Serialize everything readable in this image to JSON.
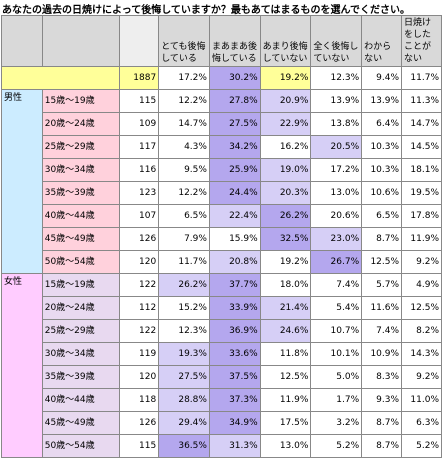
{
  "title": "あなたの過去の日焼けによって後悔していますか？最もあてはまるものを選んでください。",
  "chart_data": {
    "type": "table",
    "columns": [
      "",
      "",
      "",
      "とても後悔している",
      "まあまあ後悔している",
      "あまり後悔していない",
      "全く後悔していない",
      "わからない",
      "日焼けをしたことがない"
    ],
    "total": {
      "n": "1887",
      "values": [
        "17.2%",
        "30.2%",
        "19.2%",
        "12.3%",
        "9.4%",
        "11.7%"
      ]
    },
    "groups": [
      {
        "label": "男性",
        "rows": [
          {
            "age": "15歳～19歳",
            "n": "115",
            "values": [
              "12.2%",
              "27.8%",
              "20.9%",
              "13.9%",
              "13.9%",
              "11.3%"
            ]
          },
          {
            "age": "20歳～24歳",
            "n": "109",
            "values": [
              "14.7%",
              "27.5%",
              "22.9%",
              "13.8%",
              "6.4%",
              "14.7%"
            ]
          },
          {
            "age": "25歳～29歳",
            "n": "117",
            "values": [
              "4.3%",
              "34.2%",
              "16.2%",
              "20.5%",
              "10.3%",
              "14.5%"
            ]
          },
          {
            "age": "30歳～34歳",
            "n": "116",
            "values": [
              "9.5%",
              "25.9%",
              "19.0%",
              "17.2%",
              "10.3%",
              "18.1%"
            ]
          },
          {
            "age": "35歳～39歳",
            "n": "123",
            "values": [
              "12.2%",
              "24.4%",
              "20.3%",
              "13.0%",
              "10.6%",
              "19.5%"
            ]
          },
          {
            "age": "40歳～44歳",
            "n": "107",
            "values": [
              "6.5%",
              "22.4%",
              "26.2%",
              "20.6%",
              "6.5%",
              "17.8%"
            ]
          },
          {
            "age": "45歳～49歳",
            "n": "126",
            "values": [
              "7.9%",
              "15.9%",
              "32.5%",
              "23.0%",
              "8.7%",
              "11.9%"
            ]
          },
          {
            "age": "50歳～54歳",
            "n": "120",
            "values": [
              "11.7%",
              "20.8%",
              "19.2%",
              "26.7%",
              "12.5%",
              "9.2%"
            ]
          }
        ]
      },
      {
        "label": "女性",
        "rows": [
          {
            "age": "15歳～19歳",
            "n": "122",
            "values": [
              "26.2%",
              "37.7%",
              "18.0%",
              "7.4%",
              "5.7%",
              "4.9%"
            ]
          },
          {
            "age": "20歳～24歳",
            "n": "112",
            "values": [
              "15.2%",
              "33.9%",
              "21.4%",
              "5.4%",
              "11.6%",
              "12.5%"
            ]
          },
          {
            "age": "25歳～29歳",
            "n": "122",
            "values": [
              "12.3%",
              "36.9%",
              "24.6%",
              "10.7%",
              "7.4%",
              "8.2%"
            ]
          },
          {
            "age": "30歳～34歳",
            "n": "119",
            "values": [
              "19.3%",
              "33.6%",
              "11.8%",
              "10.1%",
              "10.9%",
              "14.3%"
            ]
          },
          {
            "age": "35歳～39歳",
            "n": "120",
            "values": [
              "27.5%",
              "37.5%",
              "12.5%",
              "5.0%",
              "8.3%",
              "9.2%"
            ]
          },
          {
            "age": "40歳～44歳",
            "n": "118",
            "values": [
              "28.8%",
              "37.3%",
              "11.9%",
              "1.7%",
              "9.3%",
              "11.0%"
            ]
          },
          {
            "age": "45歳～49歳",
            "n": "126",
            "values": [
              "29.4%",
              "34.9%",
              "17.5%",
              "3.2%",
              "8.7%",
              "6.3%"
            ]
          },
          {
            "age": "50歳～54歳",
            "n": "115",
            "values": [
              "36.5%",
              "31.3%",
              "13.0%",
              "5.2%",
              "8.7%",
              "5.2%"
            ]
          }
        ]
      }
    ],
    "highlight_colors": {
      "max": "#b4a7ee",
      "second": "#d6cff6",
      "total_row": "#ffff99",
      "male_label": "#ccecff",
      "male_age": "#ffd1dc",
      "female_label": "#ffccff",
      "female_age": "#e8d9f0",
      "header": "#d9d9d9",
      "n_column": "#eeeeee"
    }
  }
}
